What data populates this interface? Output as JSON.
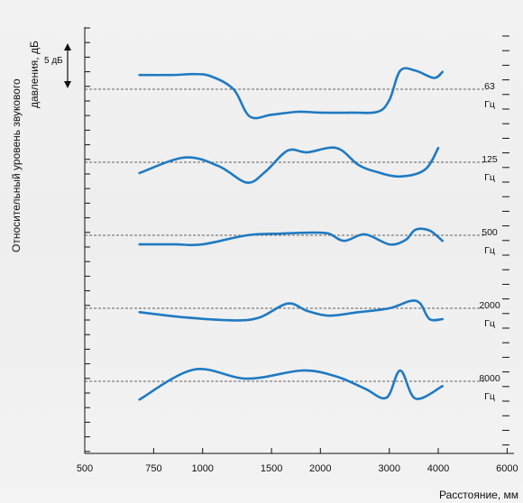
{
  "chart_data": {
    "type": "line",
    "xlabel": "Расстояние, мм",
    "ylabel": [
      "Относительный уровень звукового",
      "давления, дБ"
    ],
    "scale_bar_label": "5 дБ",
    "x_tick_labels": [
      "500",
      "750",
      "1000",
      "1500",
      "2000",
      "3000",
      "4000",
      "6000"
    ],
    "x_ticks": [
      500,
      750,
      1000,
      1500,
      2000,
      3000,
      4000,
      6000
    ],
    "xlim": [
      500,
      6000
    ],
    "x_scale": "log",
    "y_unit": "dB",
    "grid": false,
    "series": [
      {
        "name": "63 Гц",
        "label_top": "63",
        "label_bottom": "Гц",
        "points": [
          [
            690,
            3.3
          ],
          [
            840,
            3.3
          ],
          [
            950,
            3.5
          ],
          [
            1050,
            3.0
          ],
          [
            1200,
            0.0
          ],
          [
            1320,
            -6.3
          ],
          [
            1500,
            -5.9
          ],
          [
            1750,
            -5.2
          ],
          [
            2000,
            -5.4
          ],
          [
            2400,
            -5.4
          ],
          [
            2800,
            -5.2
          ],
          [
            3000,
            -2.5
          ],
          [
            3200,
            4.3
          ],
          [
            3500,
            4.3
          ],
          [
            3900,
            2.6
          ],
          [
            4100,
            4.0
          ]
        ]
      },
      {
        "name": "125 Гц",
        "label_top": "125",
        "label_bottom": "Гц",
        "points": [
          [
            690,
            -2.5
          ],
          [
            900,
            1.1
          ],
          [
            1100,
            -0.9
          ],
          [
            1300,
            -4.7
          ],
          [
            1450,
            -2.1
          ],
          [
            1650,
            2.7
          ],
          [
            1850,
            2.3
          ],
          [
            2200,
            3.3
          ],
          [
            2500,
            -0.6
          ],
          [
            2800,
            -2.3
          ],
          [
            3200,
            -3.3
          ],
          [
            3700,
            -1.7
          ],
          [
            4000,
            3.3
          ]
        ]
      },
      {
        "name": "500 Гц",
        "label_top": "500",
        "label_bottom": "Гц",
        "points": [
          [
            690,
            -2.1
          ],
          [
            850,
            -2.1
          ],
          [
            1000,
            -2.1
          ],
          [
            1300,
            0.0
          ],
          [
            1600,
            0.4
          ],
          [
            1900,
            0.6
          ],
          [
            2100,
            0.4
          ],
          [
            2300,
            -1.3
          ],
          [
            2600,
            0.2
          ],
          [
            3000,
            -2.1
          ],
          [
            3300,
            -1.1
          ],
          [
            3500,
            1.3
          ],
          [
            3800,
            1.1
          ],
          [
            4100,
            -1.3
          ]
        ]
      },
      {
        "name": "2000 Гц",
        "label_top": "2000",
        "label_bottom": "Гц",
        "points": [
          [
            690,
            -0.9
          ],
          [
            900,
            -2.1
          ],
          [
            1200,
            -2.8
          ],
          [
            1400,
            -2.1
          ],
          [
            1650,
            1.1
          ],
          [
            1850,
            -0.6
          ],
          [
            2100,
            -1.7
          ],
          [
            2500,
            -0.9
          ],
          [
            3000,
            0.0
          ],
          [
            3400,
            1.7
          ],
          [
            3600,
            1.1
          ],
          [
            3800,
            -2.5
          ],
          [
            4100,
            -2.5
          ]
        ]
      },
      {
        "name": "8000 Гц",
        "label_top": "8000",
        "label_bottom": "Гц",
        "points": [
          [
            690,
            -4.2
          ],
          [
            950,
            2.7
          ],
          [
            1300,
            0.6
          ],
          [
            1800,
            2.5
          ],
          [
            2200,
            1.1
          ],
          [
            2600,
            -1.7
          ],
          [
            2950,
            -3.8
          ],
          [
            3200,
            2.5
          ],
          [
            3500,
            -4.0
          ],
          [
            4100,
            -1.1
          ]
        ]
      }
    ]
  }
}
